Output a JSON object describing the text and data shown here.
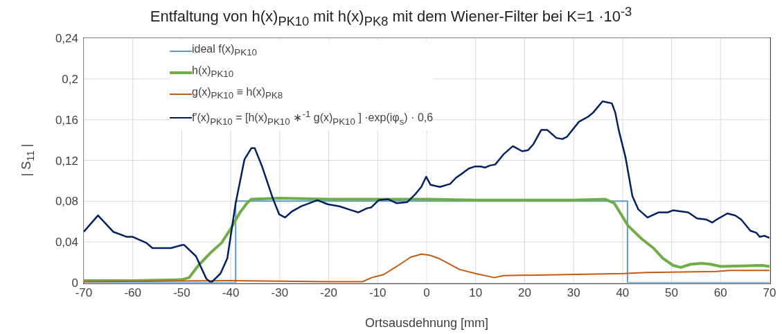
{
  "chart_data": {
    "type": "line",
    "title": "Entfaltung von h(x)$_{PK10}$ mit h(x)$_{PK8}$ mit dem Wiener-Filter bei K=1 ·10$^{-3}$",
    "xlabel": "Ortsausdehnung [mm]",
    "ylabel": "| S$_{11}$ |",
    "xlim": [
      -70,
      70
    ],
    "xticks": [
      -70,
      -60,
      -50,
      -40,
      -30,
      -20,
      -10,
      0,
      10,
      20,
      30,
      40,
      50,
      60,
      70
    ],
    "ylim": [
      0,
      0.24
    ],
    "yticks": [
      {
        "value": 0,
        "label": "0"
      },
      {
        "value": 0.04,
        "label": "0,04"
      },
      {
        "value": 0.08,
        "label": "0,08"
      },
      {
        "value": 0.12,
        "label": "0,12"
      },
      {
        "value": 0.16,
        "label": "0,16"
      },
      {
        "value": 0.2,
        "label": "0,2"
      },
      {
        "value": 0.24,
        "label": "0,24"
      }
    ],
    "grid": true,
    "legend": "top left",
    "marker": "none",
    "line_style": "solid",
    "series": [
      {
        "name": "ideal f(x)$_{PK10}$",
        "color": "#5b9bd5",
        "x": [
          -70,
          -39,
          -39,
          41,
          41,
          70
        ],
        "values": [
          0,
          0,
          0.08,
          0.08,
          0,
          0
        ]
      },
      {
        "name": "h(x)$_{PK10}$",
        "color": "#70ad47",
        "x": [
          -70,
          -60,
          -50,
          -48.5,
          -46.6,
          -44.2,
          -41.9,
          -40,
          -38.1,
          -36.7,
          -35.8,
          -30,
          -20,
          -10,
          0,
          10,
          20,
          30,
          36.4,
          38.3,
          41.1,
          43.9,
          46.3,
          48.2,
          50.3,
          51.9,
          53.8,
          56.2,
          58.1,
          60,
          68.5,
          70
        ],
        "values": [
          0.002,
          0.002,
          0.003,
          0.005,
          0.017,
          0.029,
          0.039,
          0.053,
          0.069,
          0.078,
          0.082,
          0.083,
          0.082,
          0.082,
          0.082,
          0.081,
          0.081,
          0.081,
          0.082,
          0.078,
          0.056,
          0.043,
          0.034,
          0.024,
          0.017,
          0.015,
          0.018,
          0.019,
          0.018,
          0.016,
          0.017,
          0.016
        ]
      },
      {
        "name": "g(x)$_{PK10}$ ≡ h(x)$_{PK8}$",
        "color": "#c55a11",
        "x": [
          -70,
          -40,
          -20,
          -13.1,
          -11.2,
          -8.8,
          -6.1,
          -3.3,
          -1.1,
          0.6,
          2.4,
          4.8,
          6.7,
          10,
          13.8,
          15.7,
          28.5,
          40.2,
          44.9,
          59.1,
          61.9,
          70
        ],
        "values": [
          0.001,
          0.002,
          0.001,
          0.001,
          0.005,
          0.008,
          0.016,
          0.025,
          0.028,
          0.027,
          0.024,
          0.018,
          0.013,
          0.009,
          0.005,
          0.007,
          0.008,
          0.009,
          0.01,
          0.011,
          0.012,
          0.012
        ]
      },
      {
        "name": "f'(x)$_{PK10}$ = [h(x)$_{PK10}$ ∗$^{-1}$ g(x)$_{PK10}$ ] ·exp(iφ$_{s}$) · 0,6",
        "color": "#002060",
        "x": [
          -70,
          -67.1,
          -64,
          -61.2,
          -60,
          -57.2,
          -56,
          -52.2,
          -49.9,
          -49.5,
          -47.1,
          -45,
          -44,
          -42.1,
          -40.7,
          -39,
          -37.2,
          -35.8,
          -35.1,
          -33.6,
          -31.5,
          -30.1,
          -28.9,
          -27.5,
          -25.6,
          -22.3,
          -20.2,
          -17.8,
          -14,
          -12.2,
          -11.3,
          -9.8,
          -7.9,
          -6.1,
          -4,
          -2.3,
          -1.1,
          -0.1,
          0.8,
          2.7,
          4.8,
          6,
          7.2,
          8.6,
          9.8,
          11,
          11.9,
          12.9,
          14,
          15.7,
          17.6,
          19.5,
          20.7,
          21.8,
          23.4,
          24.6,
          26.5,
          27.7,
          28.6,
          31.1,
          33,
          34,
          35.9,
          37.8,
          38.5,
          39.2,
          40.6,
          42,
          43.2,
          45.1,
          47.3,
          49.2,
          50.3,
          53.4,
          55.2,
          57.1,
          58.3,
          59.2,
          61.4,
          63,
          64.2,
          66.1,
          67.3,
          68,
          69,
          70
        ],
        "values": [
          0.05,
          0.066,
          0.05,
          0.045,
          0.045,
          0.039,
          0.034,
          0.034,
          0.037,
          0.037,
          0.026,
          0.004,
          0,
          0.009,
          0.024,
          0.078,
          0.121,
          0.132,
          0.132,
          0.114,
          0.084,
          0.067,
          0.064,
          0.07,
          0.075,
          0.081,
          0.077,
          0.075,
          0.069,
          0.073,
          0.074,
          0.081,
          0.082,
          0.078,
          0.079,
          0.087,
          0.094,
          0.104,
          0.096,
          0.094,
          0.097,
          0.103,
          0.107,
          0.112,
          0.114,
          0.114,
          0.113,
          0.115,
          0.116,
          0.126,
          0.134,
          0.129,
          0.13,
          0.136,
          0.15,
          0.15,
          0.142,
          0.141,
          0.143,
          0.158,
          0.163,
          0.167,
          0.178,
          0.176,
          0.167,
          0.15,
          0.123,
          0.085,
          0.072,
          0.064,
          0.069,
          0.069,
          0.071,
          0.069,
          0.063,
          0.062,
          0.059,
          0.062,
          0.068,
          0.066,
          0.062,
          0.051,
          0.049,
          0.045,
          0.046,
          0.044
        ]
      }
    ]
  }
}
